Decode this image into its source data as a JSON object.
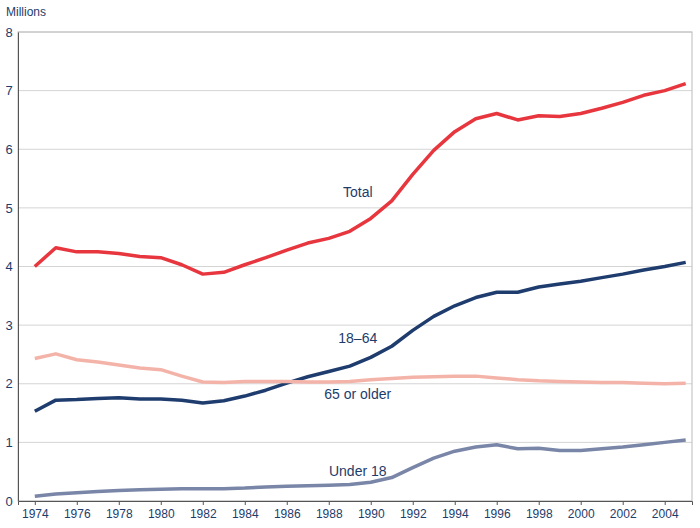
{
  "chart_data": {
    "type": "line",
    "y_label": "Millions",
    "x": [
      1974,
      1975,
      1976,
      1977,
      1978,
      1979,
      1980,
      1981,
      1982,
      1983,
      1984,
      1985,
      1986,
      1987,
      1988,
      1989,
      1990,
      1991,
      1992,
      1993,
      1994,
      1995,
      1996,
      1997,
      1998,
      1999,
      2000,
      2001,
      2002,
      2003,
      2004,
      2005
    ],
    "series": [
      {
        "name": "Total",
        "color": "#e8363f",
        "values": [
          4.0,
          4.32,
          4.25,
          4.25,
          4.22,
          4.17,
          4.15,
          4.03,
          3.87,
          3.9,
          4.03,
          4.15,
          4.28,
          4.4,
          4.48,
          4.6,
          4.82,
          5.12,
          5.57,
          5.98,
          6.3,
          6.52,
          6.61,
          6.5,
          6.57,
          6.56,
          6.61,
          6.7,
          6.8,
          6.92,
          7.0,
          7.12
        ]
      },
      {
        "name": "18–64",
        "color": "#1f3c6e",
        "values": [
          1.53,
          1.72,
          1.73,
          1.75,
          1.76,
          1.74,
          1.74,
          1.72,
          1.67,
          1.71,
          1.79,
          1.89,
          2.01,
          2.12,
          2.21,
          2.3,
          2.45,
          2.64,
          2.91,
          3.15,
          3.33,
          3.47,
          3.56,
          3.56,
          3.65,
          3.7,
          3.75,
          3.81,
          3.87,
          3.94,
          4.0,
          4.07
        ]
      },
      {
        "name": "65 or older",
        "color": "#f4b3a8",
        "values": [
          2.43,
          2.51,
          2.41,
          2.37,
          2.32,
          2.27,
          2.24,
          2.13,
          2.03,
          2.02,
          2.04,
          2.04,
          2.04,
          2.03,
          2.03,
          2.04,
          2.07,
          2.09,
          2.11,
          2.12,
          2.13,
          2.13,
          2.1,
          2.07,
          2.05,
          2.04,
          2.03,
          2.02,
          2.02,
          2.01,
          2.0,
          2.01
        ]
      },
      {
        "name": "Under 18",
        "color": "#7a86a8",
        "values": [
          0.08,
          0.12,
          0.14,
          0.16,
          0.18,
          0.19,
          0.2,
          0.21,
          0.21,
          0.21,
          0.22,
          0.24,
          0.25,
          0.26,
          0.27,
          0.28,
          0.32,
          0.4,
          0.57,
          0.73,
          0.85,
          0.92,
          0.96,
          0.89,
          0.9,
          0.86,
          0.86,
          0.89,
          0.92,
          0.96,
          1.0,
          1.04
        ]
      }
    ],
    "xlim": [
      1973.2,
      2005.3
    ],
    "xticks": [
      1974,
      1976,
      1978,
      1980,
      1982,
      1984,
      1986,
      1988,
      1990,
      1992,
      1994,
      1996,
      1998,
      2000,
      2002,
      2004
    ],
    "ylim": [
      0,
      8
    ],
    "yticks": [
      0,
      1,
      2,
      3,
      4,
      5,
      6,
      7,
      8
    ],
    "grid": true
  }
}
